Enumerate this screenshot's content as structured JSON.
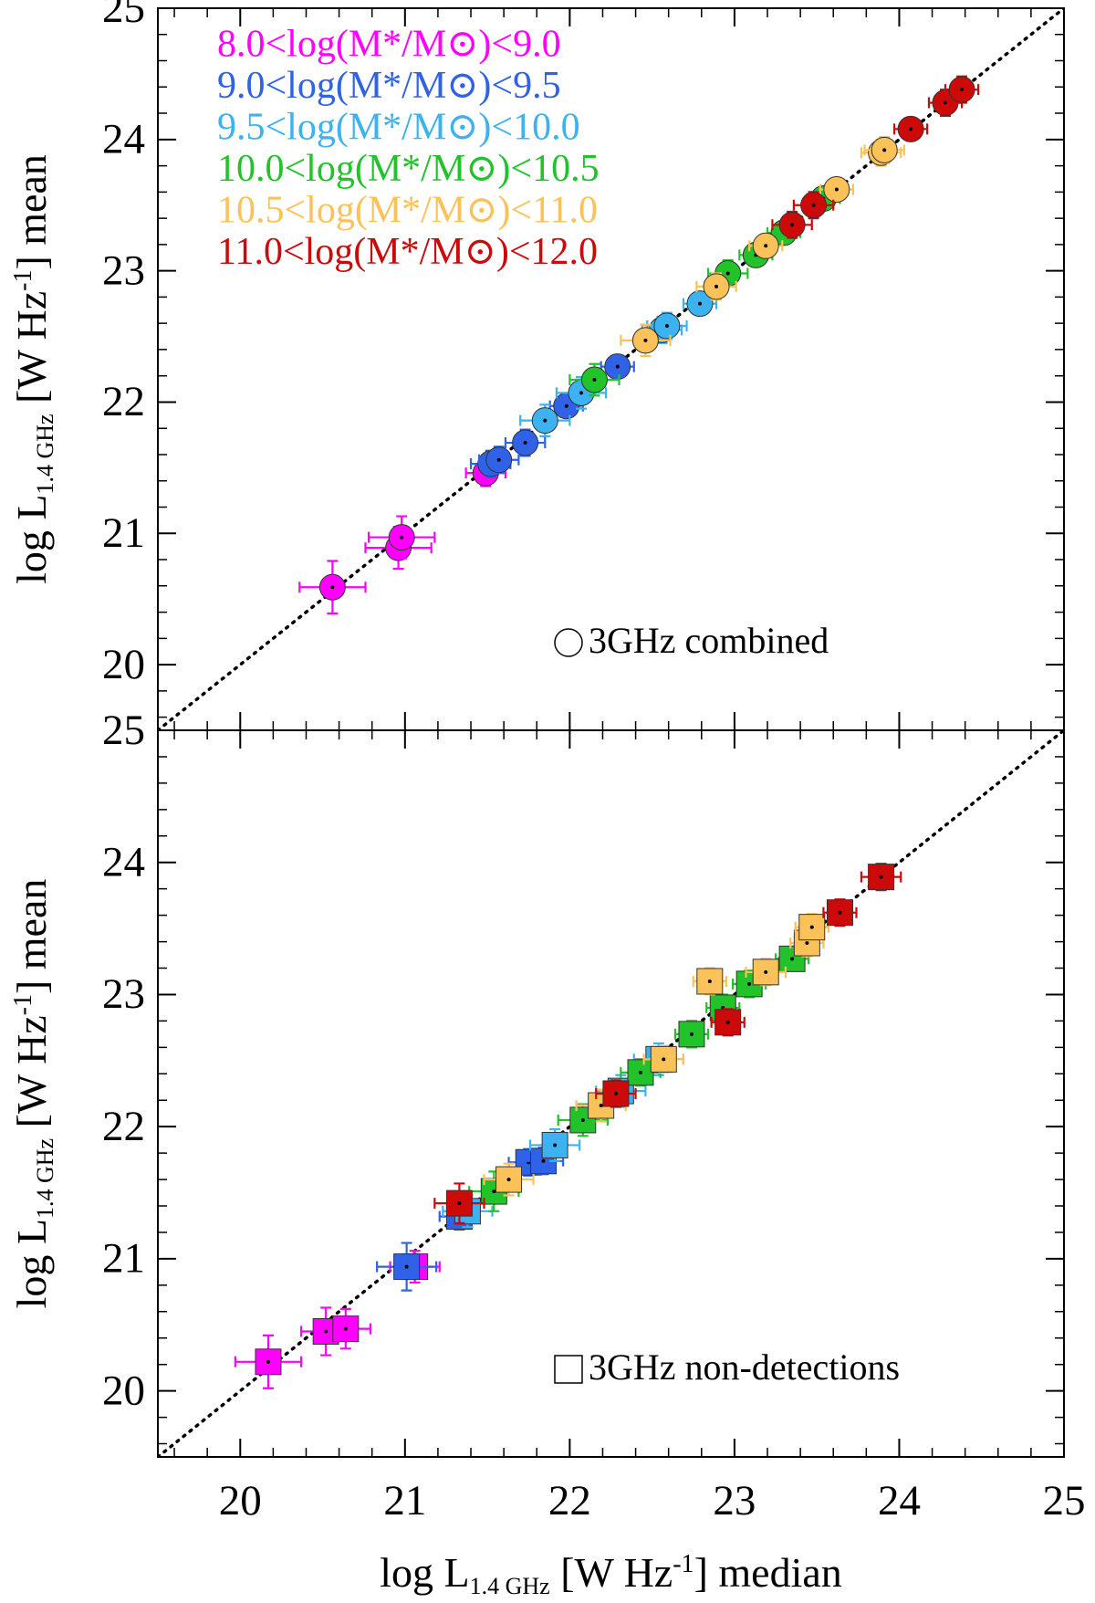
{
  "chart_data": [
    {
      "type": "scatter",
      "marker": "circle",
      "ylabel": [
        "log L",
        "1.4 GHz",
        " [W Hz",
        "-1",
        "] mean"
      ],
      "annotation": "3GHz combined",
      "xlim": [
        19.5,
        25
      ],
      "ylim": [
        19.5,
        25
      ],
      "xticks": [
        20,
        21,
        22,
        23,
        24,
        25
      ],
      "yticks": [
        20,
        21,
        22,
        23,
        24,
        25
      ],
      "series": [
        {
          "name": "8.0<log(M*/M⊙)<9.0",
          "color": "#ff00ff",
          "x": [
            20.56,
            20.96,
            20.98,
            21.49
          ],
          "y": [
            20.59,
            20.89,
            20.97,
            21.46
          ],
          "xerr": [
            0.2,
            0.2,
            0.2,
            0.12
          ],
          "yerr": [
            0.2,
            0.16,
            0.16,
            0.1
          ]
        },
        {
          "name": "9.0<log(M*/M⊙)<9.5",
          "color": "#2f62e6",
          "x": [
            21.52,
            21.57,
            21.73,
            21.98,
            22.29
          ],
          "y": [
            21.53,
            21.56,
            21.69,
            21.97,
            22.27
          ],
          "xerr": [
            0.12,
            0.12,
            0.12,
            0.1,
            0.1
          ],
          "yerr": [
            0.1,
            0.1,
            0.1,
            0.08,
            0.08
          ]
        },
        {
          "name": "9.5<log(M*/M⊙)<10.0",
          "color": "#3cb2f0",
          "x": [
            21.85,
            22.07,
            22.56,
            22.59,
            22.79
          ],
          "y": [
            21.86,
            22.07,
            22.55,
            22.58,
            22.75
          ],
          "xerr": [
            0.15,
            0.15,
            0.12,
            0.12,
            0.1
          ],
          "yerr": [
            0.12,
            0.12,
            0.1,
            0.1,
            0.08
          ]
        },
        {
          "name": "10.0<log(M*/M⊙)<10.5",
          "color": "#22c22a",
          "x": [
            22.15,
            22.96,
            23.13,
            23.3,
            23.54
          ],
          "y": [
            22.17,
            22.98,
            23.12,
            23.29,
            23.55
          ],
          "xerr": [
            0.15,
            0.12,
            0.1,
            0.1,
            0.1
          ],
          "yerr": [
            0.12,
            0.1,
            0.08,
            0.08,
            0.08
          ]
        },
        {
          "name": "10.5<log(M*/M⊙)<11.0",
          "color": "#fcc25a",
          "x": [
            22.46,
            22.89,
            23.19,
            23.62,
            23.89,
            23.91
          ],
          "y": [
            22.47,
            22.88,
            23.19,
            23.62,
            23.9,
            23.92
          ],
          "xerr": [
            0.15,
            0.12,
            0.1,
            0.1,
            0.12,
            0.12
          ],
          "yerr": [
            0.12,
            0.1,
            0.08,
            0.08,
            0.1,
            0.1
          ]
        },
        {
          "name": "11.0<log(M*/M⊙)<12.0",
          "color": "#cc0a0a",
          "x": [
            23.35,
            23.48,
            24.07,
            24.28,
            24.38
          ],
          "y": [
            23.35,
            23.5,
            24.08,
            24.28,
            24.38
          ],
          "xerr": [
            0.12,
            0.12,
            0.1,
            0.1,
            0.1
          ],
          "yerr": [
            0.1,
            0.1,
            0.08,
            0.1,
            0.1
          ]
        }
      ]
    },
    {
      "type": "scatter",
      "marker": "square",
      "ylabel": [
        "log L",
        "1.4 GHz",
        " [W Hz",
        "-1",
        "] mean"
      ],
      "xlabel": [
        "log L",
        "1.4 GHz",
        " [W Hz",
        "-1",
        "] median"
      ],
      "annotation": "3GHz non-detections",
      "xlim": [
        19.5,
        25
      ],
      "ylim": [
        19.5,
        25
      ],
      "xticks": [
        20,
        21,
        22,
        23,
        24,
        25
      ],
      "yticks": [
        20,
        21,
        22,
        23,
        24,
        25
      ],
      "series": [
        {
          "color": "#ff00ff",
          "x": [
            20.17,
            20.52,
            20.64,
            21.06
          ],
          "y": [
            20.22,
            20.45,
            20.47,
            20.94
          ],
          "xerr": [
            0.2,
            0.15,
            0.15,
            0.15
          ],
          "yerr": [
            0.2,
            0.18,
            0.15,
            0.12
          ]
        },
        {
          "color": "#2f62e6",
          "x": [
            21.01,
            21.33,
            21.75,
            21.84
          ],
          "y": [
            20.94,
            21.32,
            21.73,
            21.74
          ],
          "xerr": [
            0.18,
            0.12,
            0.12,
            0.12
          ],
          "yerr": [
            0.18,
            0.1,
            0.1,
            0.1
          ]
        },
        {
          "color": "#3cb2f0",
          "x": [
            21.38,
            21.91,
            22.31,
            22.54
          ],
          "y": [
            21.36,
            21.86,
            22.27,
            22.51
          ],
          "xerr": [
            0.15,
            0.15,
            0.15,
            0.15
          ],
          "yerr": [
            0.12,
            0.12,
            0.12,
            0.12
          ]
        },
        {
          "color": "#22c22a",
          "x": [
            21.54,
            22.08,
            22.43,
            22.74,
            22.93,
            23.09,
            23.35
          ],
          "y": [
            21.51,
            22.05,
            22.41,
            22.7,
            22.9,
            23.08,
            23.27
          ],
          "xerr": [
            0.15,
            0.15,
            0.12,
            0.1,
            0.1,
            0.1,
            0.1
          ],
          "yerr": [
            0.15,
            0.12,
            0.1,
            0.1,
            0.1,
            0.1,
            0.08
          ]
        },
        {
          "color": "#fcc25a",
          "x": [
            21.63,
            22.19,
            22.57,
            22.85,
            23.19,
            23.44,
            23.47
          ],
          "y": [
            21.6,
            22.16,
            22.51,
            23.1,
            23.17,
            23.39,
            23.51
          ],
          "xerr": [
            0.15,
            0.15,
            0.12,
            0.1,
            0.12,
            0.1,
            0.1
          ],
          "yerr": [
            0.12,
            0.12,
            0.1,
            0.1,
            0.1,
            0.1,
            0.1
          ]
        },
        {
          "color": "#cc0a0a",
          "x": [
            21.33,
            22.28,
            22.96,
            23.64,
            23.89
          ],
          "y": [
            21.42,
            22.25,
            22.79,
            23.62,
            23.89
          ],
          "xerr": [
            0.15,
            0.12,
            0.1,
            0.1,
            0.12
          ],
          "yerr": [
            0.15,
            0.1,
            0.1,
            0.1,
            0.1
          ]
        }
      ]
    }
  ]
}
